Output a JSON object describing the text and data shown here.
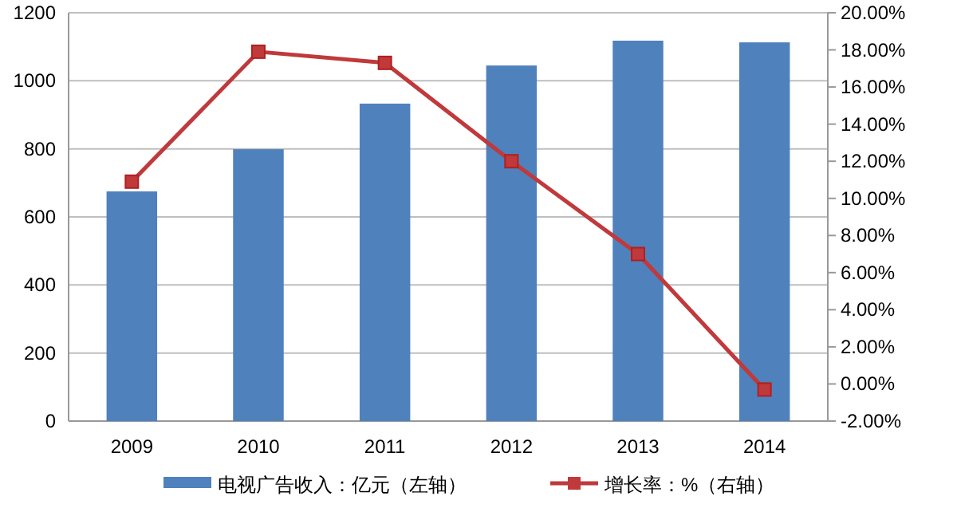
{
  "chart_data": {
    "type": "bar",
    "categories": [
      "2009",
      "2010",
      "2011",
      "2012",
      "2013",
      "2014"
    ],
    "series": [
      {
        "name": "电视广告收入：亿元（左轴）",
        "color": "#4f81bd",
        "values": [
          675,
          799,
          933,
          1045,
          1118,
          1113
        ]
      },
      {
        "name": "增长率：%（右轴）",
        "type": "line",
        "axis": "y2",
        "color": "#c0393b",
        "marker": "square",
        "values": [
          10.9,
          17.9,
          17.3,
          12.0,
          7.0,
          -0.3
        ]
      }
    ],
    "ylim": [
      0,
      1200
    ],
    "yticks": [
      0,
      200,
      400,
      600,
      800,
      1000,
      1200
    ],
    "y2lim": [
      -2,
      20
    ],
    "y2ticks": [
      {
        "value": -2,
        "label": "-2.00%"
      },
      {
        "value": 0,
        "label": "0.00%"
      },
      {
        "value": 2,
        "label": "2.00%"
      },
      {
        "value": 4,
        "label": "4.00%"
      },
      {
        "value": 6,
        "label": "6.00%"
      },
      {
        "value": 8,
        "label": "8.00%"
      },
      {
        "value": 10,
        "label": "10.00%"
      },
      {
        "value": 12,
        "label": "12.00%"
      },
      {
        "value": 14,
        "label": "14.00%"
      },
      {
        "value": 16,
        "label": "16.00%"
      },
      {
        "value": 18,
        "label": "18.00%"
      },
      {
        "value": 20,
        "label": "20.00%"
      }
    ],
    "grid": "y",
    "legend": "bottom"
  }
}
